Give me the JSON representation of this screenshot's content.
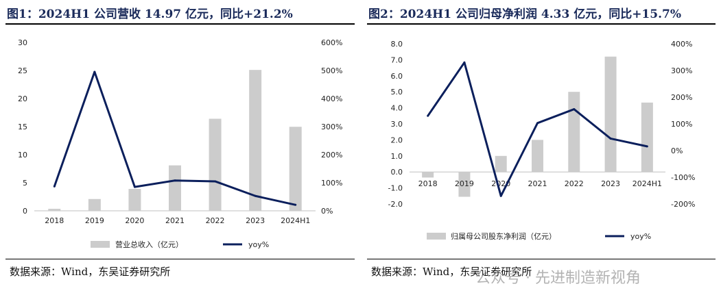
{
  "colors": {
    "bar": "#cccccc",
    "line": "#0b1f5c",
    "title": "#1a2a5a"
  },
  "panels": [
    {
      "title": "图1：2024H1 公司营收 14.97 亿元，同比+21.2%",
      "source": "数据来源：Wind，东吴证券研究所",
      "chart_data": {
        "type": "bar",
        "categories": [
          "2018",
          "2019",
          "2020",
          "2021",
          "2022",
          "2023",
          "2024H1"
        ],
        "series": [
          {
            "name": "营业总收入（亿元）",
            "type": "bar",
            "axis": "left",
            "values": [
              0.35,
              2.1,
              3.9,
              8.1,
              16.4,
              25.1,
              14.97
            ]
          },
          {
            "name": "yoy%",
            "type": "line",
            "axis": "right",
            "values": [
              87,
              495,
              85,
              108,
              105,
              53,
              21.2
            ]
          }
        ],
        "left_axis": {
          "ylim": [
            0,
            30
          ],
          "ticks": [
            "0",
            "5",
            "10",
            "15",
            "20",
            "25",
            "30"
          ]
        },
        "right_axis": {
          "ylim": [
            0,
            600
          ],
          "ticks": [
            "0%",
            "100%",
            "200%",
            "300%",
            "400%",
            "500%",
            "600%"
          ]
        },
        "legend_position": "bottom",
        "grid": false
      }
    },
    {
      "title": "图2：2024H1 公司归母净利润 4.33 亿元，同比+15.7%",
      "source": "数据来源：Wind，东吴证券研究所",
      "chart_data": {
        "type": "bar",
        "categories": [
          "2018",
          "2019",
          "2020",
          "2021",
          "2022",
          "2023",
          "2024H1"
        ],
        "series": [
          {
            "name": "归属母公司股东净利润（亿元）",
            "type": "bar",
            "axis": "left",
            "values": [
              -0.35,
              -1.55,
              1.0,
              2.0,
              5.0,
              7.2,
              4.33
            ]
          },
          {
            "name": "yoy%",
            "type": "line",
            "axis": "right",
            "values": [
              130,
              330,
              -170,
              103,
              155,
              45,
              15.7
            ]
          }
        ],
        "left_axis": {
          "ylim": [
            -2,
            8
          ],
          "ticks": [
            "-2.0",
            "-1.0",
            "0.0",
            "1.0",
            "2.0",
            "3.0",
            "4.0",
            "5.0",
            "6.0",
            "7.0",
            "8.0"
          ]
        },
        "right_axis": {
          "ylim": [
            -200,
            400
          ],
          "ticks": [
            "-200%",
            "-100%",
            "0%",
            "100%",
            "200%",
            "300%",
            "400%"
          ]
        },
        "legend_position": "bottom",
        "grid": false
      }
    }
  ],
  "watermark": "公众号 · 先进制造新视角"
}
